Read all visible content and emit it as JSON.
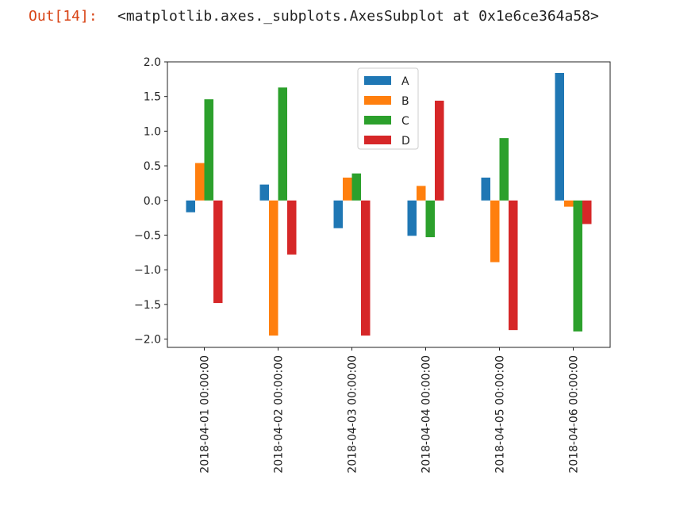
{
  "output": {
    "prompt": "Out[14]:",
    "text": "<matplotlib.axes._subplots.AxesSubplot at 0x1e6ce364a58>"
  },
  "chart_data": {
    "type": "bar",
    "title": "",
    "xlabel": "",
    "ylabel": "",
    "categories": [
      "2018-04-01 00:00:00",
      "2018-04-02 00:00:00",
      "2018-04-03 00:00:00",
      "2018-04-04 00:00:00",
      "2018-04-05 00:00:00",
      "2018-04-06 00:00:00"
    ],
    "series": [
      {
        "name": "A",
        "color": "#1f77b4",
        "values": [
          -0.17,
          0.23,
          -0.4,
          -0.51,
          0.33,
          1.84
        ]
      },
      {
        "name": "B",
        "color": "#ff7f0e",
        "values": [
          0.54,
          -1.95,
          0.33,
          0.21,
          -0.89,
          -0.09
        ]
      },
      {
        "name": "C",
        "color": "#2ca02c",
        "values": [
          1.46,
          1.63,
          0.39,
          -0.53,
          0.9,
          -1.89
        ]
      },
      {
        "name": "D",
        "color": "#d62728",
        "values": [
          -1.48,
          -0.78,
          -1.95,
          1.44,
          -1.87,
          -0.34
        ]
      }
    ],
    "ylim": [
      -2.12,
      2.0
    ],
    "yticks": [
      2.0,
      1.5,
      1.0,
      0.5,
      0.0,
      -0.5,
      -1.0,
      -1.5,
      -2.0
    ],
    "ytick_labels": [
      "2.0",
      "1.5",
      "1.0",
      "0.5",
      "0.0",
      "−0.5",
      "−1.0",
      "−1.5",
      "−2.0"
    ],
    "grid": false,
    "legend": "upper center"
  }
}
